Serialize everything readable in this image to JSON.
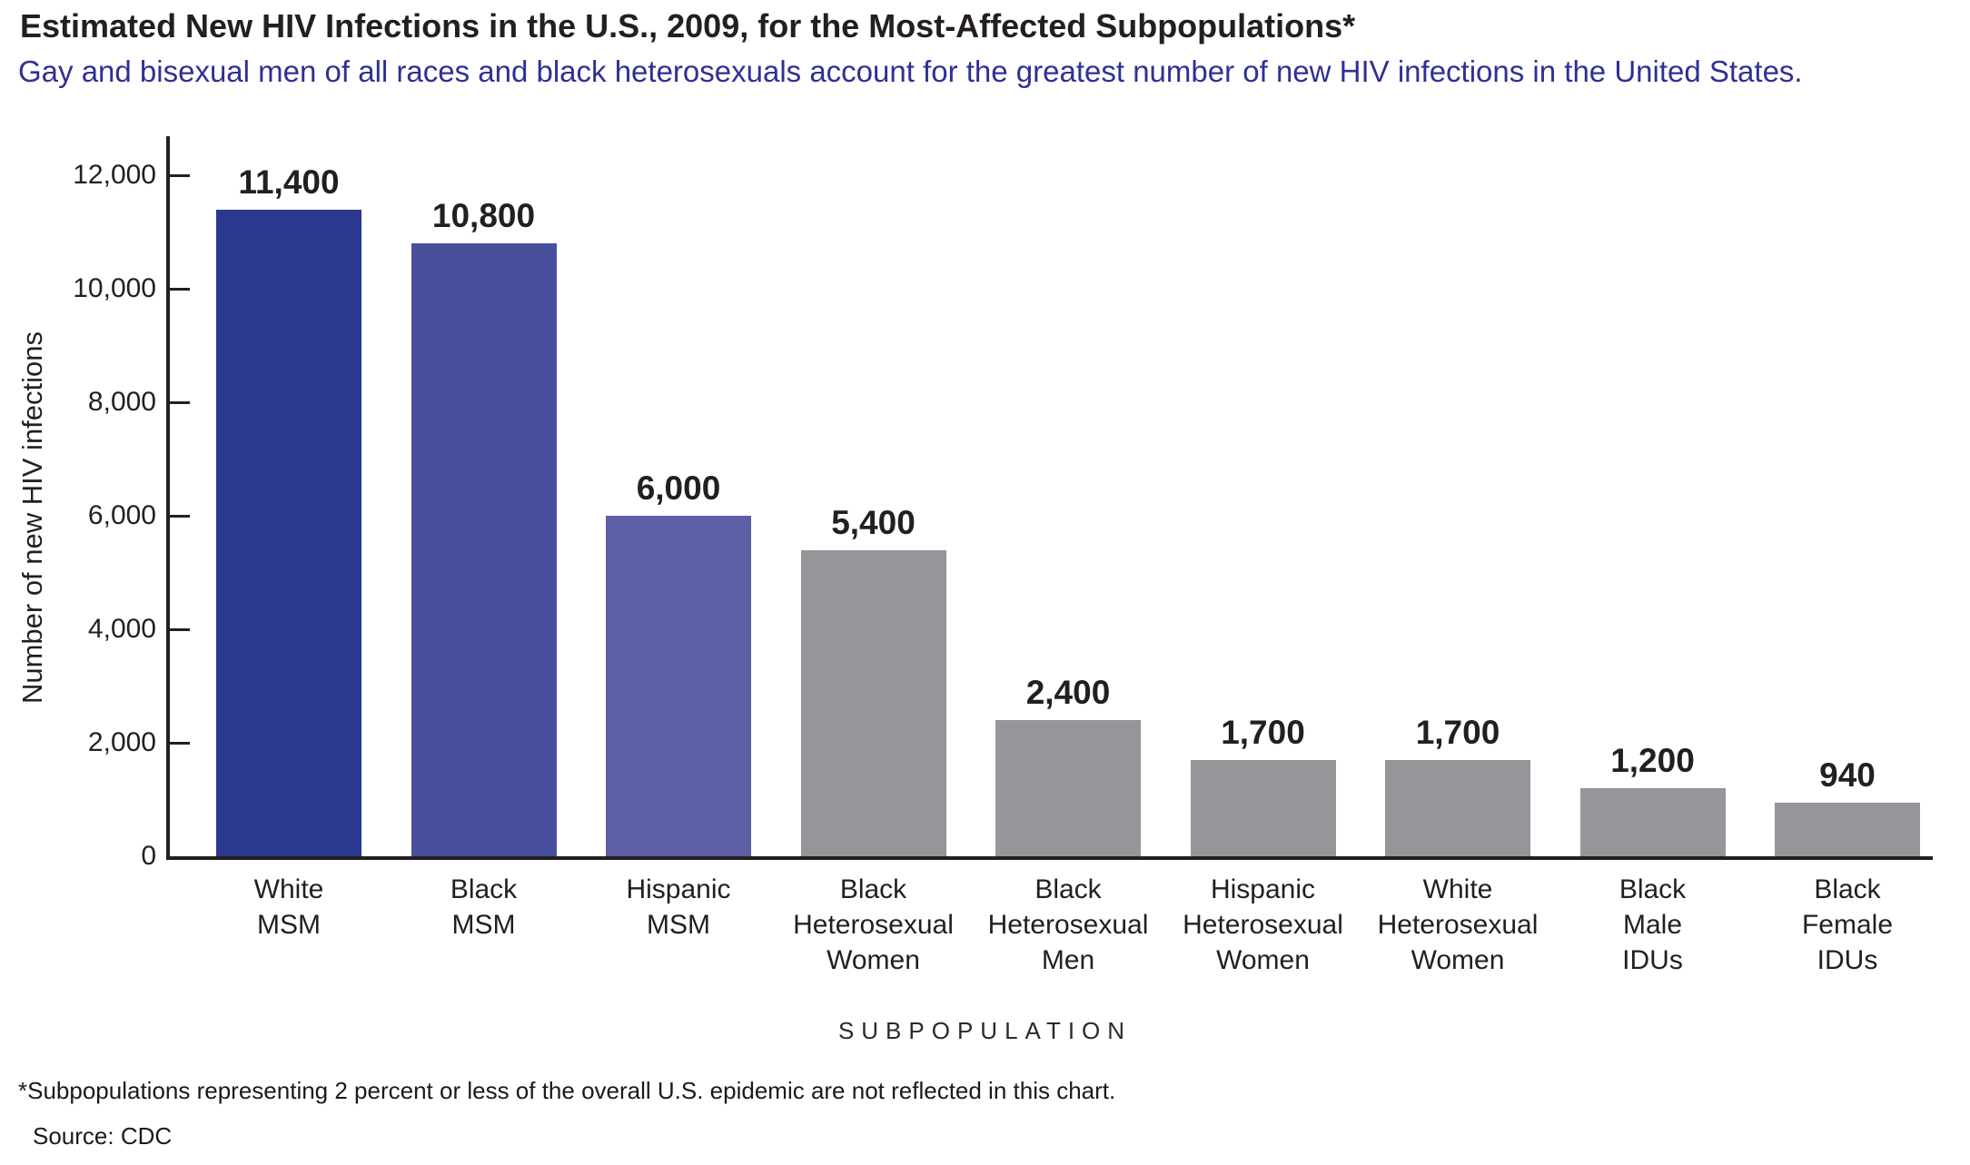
{
  "title": "Estimated New HIV Infections in the U.S., 2009, for the Most-Affected Subpopulations*",
  "subtitle": "Gay and bisexual men of all races and black heterosexuals account for the greatest number of new HIV infections in the United States.",
  "footnote": "*Subpopulations representing 2 percent or less of the overall U.S. epidemic are not reflected in this chart.",
  "source": "Source: CDC",
  "colors": {
    "title_text": "#231F20",
    "subtitle_text": "#2E3192",
    "axis": "#231F20",
    "bar_dark_blue": "#2B3890",
    "bar_mid_blue": "#474F9D",
    "bar_light_blue": "#5D60A7",
    "bar_gray": "#95959A"
  },
  "chart_data": {
    "type": "bar",
    "title": "Estimated New HIV Infections in the U.S., 2009, for the Most-Affected Subpopulations*",
    "subtitle": "Gay and bisexual men of all races and black heterosexuals account for the greatest number of new HIV infections in the United States.",
    "xlabel": "SUBPOPULATION",
    "ylabel": "Number of new HIV infections",
    "ylim": [
      0,
      12000
    ],
    "grid": false,
    "legend": null,
    "yticks": [
      0,
      2000,
      4000,
      6000,
      8000,
      10000,
      12000
    ],
    "ytick_labels": [
      "0",
      "2,000",
      "4,000",
      "6,000",
      "8,000",
      "10,000",
      "12,000"
    ],
    "categories": [
      "White MSM",
      "Black MSM",
      "Hispanic MSM",
      "Black Heterosexual Women",
      "Black Heterosexual Men",
      "Hispanic Heterosexual Women",
      "White Heterosexual Women",
      "Black Male IDUs",
      "Black Female IDUs"
    ],
    "category_lines": [
      [
        "White",
        "MSM"
      ],
      [
        "Black",
        "MSM"
      ],
      [
        "Hispanic",
        "MSM"
      ],
      [
        "Black",
        "Heterosexual",
        "Women"
      ],
      [
        "Black",
        "Heterosexual",
        "Men"
      ],
      [
        "Hispanic",
        "Heterosexual",
        "Women"
      ],
      [
        "White",
        "Heterosexual",
        "Women"
      ],
      [
        "Black",
        "Male",
        "IDUs"
      ],
      [
        "Black",
        "Female",
        "IDUs"
      ]
    ],
    "values": [
      11400,
      10800,
      6000,
      5400,
      2400,
      1700,
      1700,
      1200,
      940
    ],
    "value_labels": [
      "11,400",
      "10,800",
      "6,000",
      "5,400",
      "2,400",
      "1,700",
      "1,700",
      "1,200",
      "940"
    ],
    "bar_colors": [
      "#2B3890",
      "#474F9D",
      "#5D60A7",
      "#95959A",
      "#95959A",
      "#95959A",
      "#95959A",
      "#95959A",
      "#95959A"
    ]
  }
}
